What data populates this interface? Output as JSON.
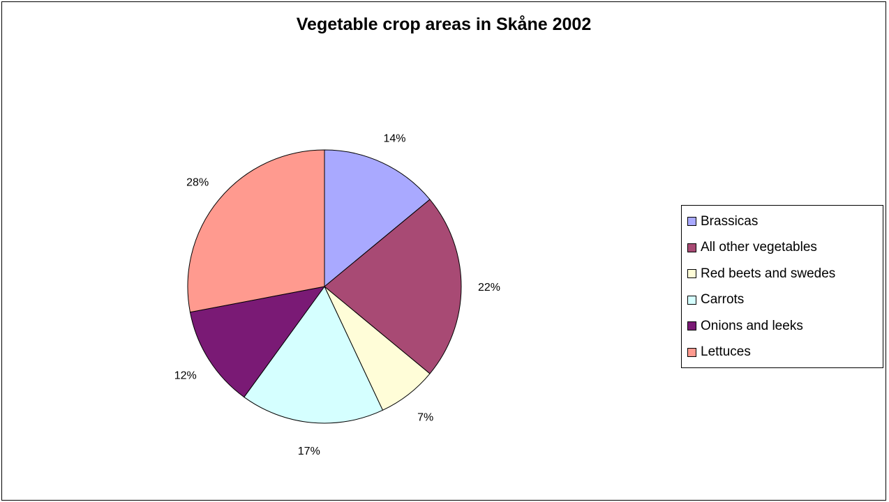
{
  "chart_data": {
    "type": "pie",
    "title": "Vegetable crop areas in Skåne 2002",
    "legend_position": "right",
    "slices": [
      {
        "name": "Brassicas",
        "value": 14,
        "label": "14%",
        "color": "#A9A9FF"
      },
      {
        "name": "All other vegetables",
        "value": 22,
        "label": "22%",
        "color": "#A84A74"
      },
      {
        "name": "Red beets and swedes",
        "value": 7,
        "label": "7%",
        "color": "#FFFDD8"
      },
      {
        "name": "Carrots",
        "value": 17,
        "label": "17%",
        "color": "#D5FFFF"
      },
      {
        "name": "Onions and leeks",
        "value": 12,
        "label": "12%",
        "color": "#7A1A75"
      },
      {
        "name": "Lettuces",
        "value": 28,
        "label": "28%",
        "color": "#FF9A8F"
      }
    ]
  }
}
